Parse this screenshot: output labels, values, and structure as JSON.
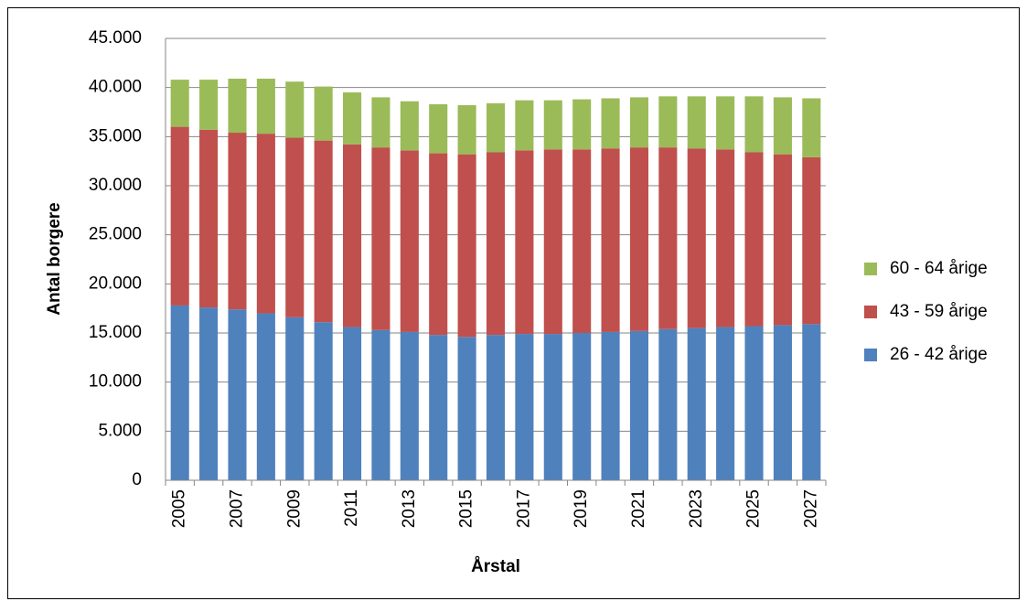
{
  "chart_data": {
    "type": "stacked_bar",
    "categories": [
      "2005",
      null,
      "2007",
      null,
      "2009",
      null,
      "2011",
      null,
      "2013",
      null,
      "2015",
      null,
      "2017",
      null,
      "2019",
      null,
      "2021",
      null,
      "2023",
      null,
      "2025",
      null,
      "2027"
    ],
    "x_label": "Årstal",
    "y_label": "Antal borgere",
    "series": [
      {
        "name": "26 - 42 årige",
        "color": "#4f81bd",
        "values": [
          17800,
          17600,
          17400,
          17000,
          16600,
          16100,
          15600,
          15300,
          15100,
          14800,
          14600,
          14800,
          14900,
          14900,
          15000,
          15100,
          15200,
          15400,
          15500,
          15600,
          15700,
          15800,
          15900
        ]
      },
      {
        "name": "43 - 59 årige",
        "color": "#c0504d",
        "values": [
          18200,
          18100,
          18000,
          18300,
          18300,
          18500,
          18600,
          18600,
          18500,
          18500,
          18600,
          18600,
          18700,
          18800,
          18700,
          18700,
          18700,
          18500,
          18300,
          18100,
          17700,
          17400,
          17000
        ]
      },
      {
        "name": "60 - 64 årige",
        "color": "#9bbb59",
        "values": [
          4800,
          5100,
          5500,
          5600,
          5700,
          5500,
          5300,
          5100,
          5000,
          5000,
          5000,
          5000,
          5100,
          5000,
          5100,
          5100,
          5100,
          5200,
          5300,
          5400,
          5700,
          5800,
          6000
        ]
      }
    ],
    "ylim": [
      0,
      45000
    ],
    "yticks": [
      0,
      {
        "value": 5000,
        "label": "5.000"
      },
      {
        "value": 10000,
        "label": "10.000"
      },
      {
        "value": 15000,
        "label": "15.000"
      },
      {
        "value": 20000,
        "label": "20.000"
      },
      {
        "value": 25000,
        "label": "25.000"
      },
      {
        "value": 30000,
        "label": "30.000"
      },
      {
        "value": 35000,
        "label": "35.000"
      },
      {
        "value": 40000,
        "label": "40.000"
      },
      {
        "value": 45000,
        "label": "45.000"
      }
    ],
    "grid": true,
    "legend": "right"
  }
}
